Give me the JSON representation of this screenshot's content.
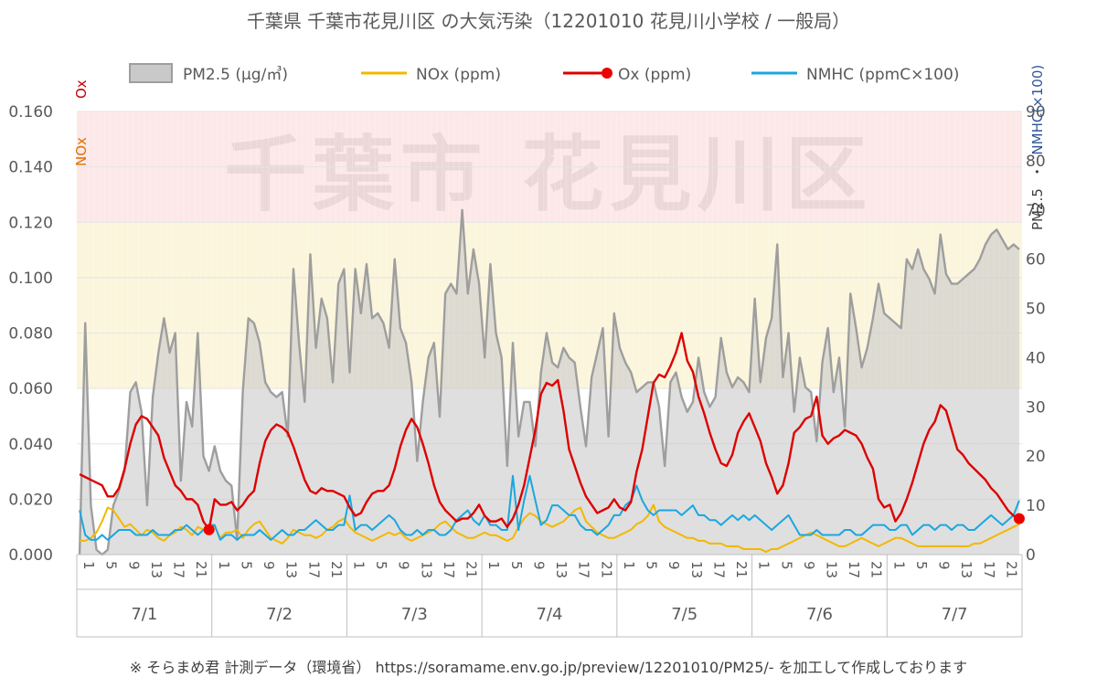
{
  "page": {
    "title": "千葉県 千葉市花見川区 の大気汚染（12201010 花見川小学校 / 一般局）",
    "watermark": "千葉市 花見川区",
    "footer": "※ そらまめ君 計測データ（環境省） https://soramame.env.go.jp/preview/12201010/PM25/- を加工して作成しております"
  },
  "legend": {
    "pm25": "PM2.5 (μg/㎥)",
    "nox": "NOx (ppm)",
    "ox": "Ox (ppm)",
    "nmhc": "NMHC (ppmC×100)"
  },
  "axes": {
    "left_label_ox": "Ox",
    "left_label_nox": "NOx",
    "right_label_pm": "PM2.5",
    "right_label_sep": "・",
    "right_label_nmhc": "NMHC(×100)",
    "left_ticks": [
      "0.000",
      "0.020",
      "0.040",
      "0.060",
      "0.080",
      "0.100",
      "0.120",
      "0.140",
      "0.160"
    ],
    "right_ticks": [
      "0",
      "10",
      "20",
      "30",
      "40",
      "50",
      "60",
      "70",
      "80",
      "90"
    ],
    "hour_ticks": [
      "1",
      "5",
      "9",
      "13",
      "17",
      "21"
    ],
    "days": [
      "7/1",
      "7/2",
      "7/3",
      "7/4",
      "7/5",
      "7/6",
      "7/7"
    ]
  },
  "colors": {
    "pm25_line": "#9e9e9e",
    "pm25_fill": "#c9c9c9",
    "nox": "#f2b800",
    "ox": "#dd0000",
    "nmhc": "#1aa7e0",
    "band_red": "#fde8e8",
    "band_yellow": "#fbf5dc",
    "axis_text": "#595959",
    "ox_label": "#c00000",
    "nox_label": "#e07000",
    "nmhc_label": "#2f5597"
  },
  "chart_data": {
    "type": "line",
    "x_unit": "hour (days 7/1–7/7, 24 hours each)",
    "left_axis": {
      "ylim": [
        0,
        0.16
      ],
      "unit": "ppm",
      "series": [
        "NOx",
        "Ox"
      ]
    },
    "right_axis": {
      "ylim": [
        0,
        90
      ],
      "series": [
        "PM2.5 (μg/㎥)",
        "NMHC (ppmC×100)"
      ]
    },
    "bands_left_axis": [
      {
        "from": 0.06,
        "to": 0.12,
        "color": "yellow"
      },
      {
        "from": 0.12,
        "to": 0.16,
        "color": "red"
      }
    ],
    "series": {
      "pm25": [
        0,
        47,
        10,
        1,
        0,
        1,
        10,
        13,
        17,
        33,
        35,
        29,
        10,
        32,
        41,
        48,
        41,
        45,
        15,
        31,
        26,
        45,
        20,
        17,
        22,
        17,
        15,
        14,
        3,
        33,
        48,
        47,
        43,
        35,
        33,
        32,
        33,
        24,
        58,
        43,
        31,
        61,
        42,
        52,
        48,
        35,
        55,
        58,
        37,
        58,
        49,
        59,
        48,
        49,
        47,
        42,
        60,
        46,
        43,
        35,
        19,
        31,
        40,
        43,
        28,
        53,
        55,
        53,
        70,
        53,
        62,
        55,
        40,
        59,
        45,
        40,
        18,
        43,
        24,
        31,
        31,
        22,
        37,
        45,
        39,
        38,
        42,
        40,
        39,
        30,
        22,
        36,
        41,
        46,
        24,
        49,
        42,
        39,
        37,
        33,
        34,
        35,
        35,
        30,
        18,
        35,
        37,
        32,
        29,
        31,
        40,
        33,
        30,
        32,
        44,
        37,
        34,
        36,
        35,
        33,
        52,
        35,
        44,
        48,
        63,
        36,
        45,
        29,
        40,
        34,
        33,
        23,
        39,
        46,
        33,
        40,
        26,
        53,
        46,
        38,
        42,
        48,
        55,
        49,
        48,
        47,
        46,
        60,
        58,
        62,
        58,
        56,
        53,
        65,
        57,
        55,
        55,
        56,
        57,
        58,
        60,
        63,
        65,
        66,
        64,
        62,
        63,
        62
      ],
      "nox": [
        0.005,
        0.005,
        0.006,
        0.008,
        0.012,
        0.017,
        0.016,
        0.013,
        0.01,
        0.011,
        0.009,
        0.007,
        0.009,
        0.008,
        0.006,
        0.005,
        0.007,
        0.008,
        0.01,
        0.009,
        0.007,
        0.01,
        0.009,
        0.011,
        0.01,
        0.006,
        0.008,
        0.008,
        0.009,
        0.006,
        0.009,
        0.011,
        0.012,
        0.009,
        0.006,
        0.005,
        0.004,
        0.006,
        0.009,
        0.008,
        0.007,
        0.007,
        0.006,
        0.007,
        0.009,
        0.01,
        0.012,
        0.013,
        0.01,
        0.008,
        0.007,
        0.006,
        0.005,
        0.006,
        0.007,
        0.008,
        0.007,
        0.008,
        0.006,
        0.005,
        0.006,
        0.007,
        0.008,
        0.009,
        0.011,
        0.012,
        0.01,
        0.008,
        0.007,
        0.006,
        0.006,
        0.007,
        0.008,
        0.007,
        0.007,
        0.006,
        0.005,
        0.006,
        0.01,
        0.013,
        0.015,
        0.014,
        0.012,
        0.011,
        0.01,
        0.011,
        0.012,
        0.014,
        0.016,
        0.017,
        0.012,
        0.01,
        0.008,
        0.007,
        0.006,
        0.006,
        0.007,
        0.008,
        0.009,
        0.011,
        0.012,
        0.014,
        0.018,
        0.012,
        0.01,
        0.009,
        0.008,
        0.007,
        0.006,
        0.006,
        0.005,
        0.005,
        0.004,
        0.004,
        0.004,
        0.003,
        0.003,
        0.003,
        0.002,
        0.002,
        0.002,
        0.002,
        0.001,
        0.002,
        0.002,
        0.003,
        0.004,
        0.005,
        0.006,
        0.007,
        0.008,
        0.007,
        0.006,
        0.005,
        0.004,
        0.003,
        0.003,
        0.004,
        0.005,
        0.006,
        0.005,
        0.004,
        0.003,
        0.004,
        0.005,
        0.006,
        0.006,
        0.005,
        0.004,
        0.003,
        0.003,
        0.003,
        0.003,
        0.003,
        0.003,
        0.003,
        0.003,
        0.003,
        0.003,
        0.004,
        0.004,
        0.005,
        0.006,
        0.007,
        0.008,
        0.009,
        0.01,
        0.011
      ],
      "ox": [
        0.029,
        0.028,
        0.027,
        0.026,
        0.025,
        0.021,
        0.021,
        0.024,
        0.031,
        0.04,
        0.047,
        0.05,
        0.049,
        0.046,
        0.043,
        0.035,
        0.03,
        0.025,
        0.023,
        0.02,
        0.02,
        0.018,
        0.012,
        0.009,
        0.02,
        0.018,
        0.018,
        0.019,
        0.016,
        0.018,
        0.021,
        0.023,
        0.033,
        0.041,
        0.045,
        0.047,
        0.046,
        0.044,
        0.039,
        0.033,
        0.027,
        0.023,
        0.022,
        0.024,
        0.023,
        0.023,
        0.022,
        0.021,
        0.017,
        0.014,
        0.015,
        0.019,
        0.022,
        0.023,
        0.023,
        0.025,
        0.031,
        0.039,
        0.045,
        0.049,
        0.046,
        0.04,
        0.033,
        0.025,
        0.019,
        0.016,
        0.014,
        0.012,
        0.013,
        0.013,
        0.015,
        0.018,
        0.014,
        0.012,
        0.012,
        0.013,
        0.01,
        0.013,
        0.018,
        0.025,
        0.035,
        0.045,
        0.058,
        0.062,
        0.061,
        0.063,
        0.052,
        0.038,
        0.032,
        0.026,
        0.021,
        0.018,
        0.015,
        0.016,
        0.017,
        0.02,
        0.017,
        0.016,
        0.019,
        0.03,
        0.038,
        0.05,
        0.062,
        0.065,
        0.064,
        0.068,
        0.073,
        0.08,
        0.07,
        0.066,
        0.057,
        0.051,
        0.044,
        0.038,
        0.033,
        0.032,
        0.036,
        0.044,
        0.048,
        0.051,
        0.046,
        0.041,
        0.033,
        0.028,
        0.022,
        0.025,
        0.033,
        0.044,
        0.046,
        0.049,
        0.05,
        0.057,
        0.043,
        0.04,
        0.042,
        0.043,
        0.045,
        0.044,
        0.043,
        0.04,
        0.035,
        0.031,
        0.02,
        0.017,
        0.018,
        0.012,
        0.015,
        0.02,
        0.026,
        0.033,
        0.04,
        0.045,
        0.048,
        0.054,
        0.052,
        0.045,
        0.038,
        0.036,
        0.033,
        0.031,
        0.029,
        0.027,
        0.024,
        0.022,
        0.019,
        0.016,
        0.014,
        0.013
      ],
      "nmhc": [
        9,
        4,
        3,
        3,
        4,
        3,
        4,
        5,
        5,
        5,
        4,
        4,
        4,
        5,
        4,
        4,
        4,
        5,
        5,
        6,
        5,
        4,
        5,
        6,
        6,
        3,
        4,
        4,
        3,
        4,
        4,
        4,
        5,
        4,
        3,
        4,
        5,
        4,
        4,
        5,
        5,
        6,
        7,
        6,
        5,
        5,
        6,
        6,
        12,
        5,
        6,
        6,
        5,
        6,
        7,
        8,
        7,
        5,
        4,
        4,
        5,
        4,
        5,
        5,
        4,
        4,
        5,
        7,
        8,
        9,
        7,
        6,
        8,
        6,
        6,
        5,
        5,
        16,
        5,
        11,
        16,
        11,
        6,
        7,
        10,
        10,
        9,
        8,
        8,
        6,
        5,
        5,
        4,
        5,
        6,
        8,
        8,
        10,
        11,
        14,
        11,
        9,
        8,
        9,
        9,
        9,
        9,
        8,
        9,
        10,
        8,
        8,
        7,
        7,
        6,
        7,
        8,
        7,
        8,
        7,
        8,
        7,
        6,
        5,
        6,
        7,
        8,
        6,
        4,
        4,
        4,
        5,
        4,
        4,
        4,
        4,
        5,
        5,
        4,
        4,
        5,
        6,
        6,
        6,
        5,
        5,
        6,
        6,
        4,
        5,
        6,
        6,
        5,
        6,
        6,
        5,
        6,
        6,
        5,
        5,
        6,
        7,
        8,
        7,
        6,
        7,
        8,
        11
      ]
    }
  }
}
